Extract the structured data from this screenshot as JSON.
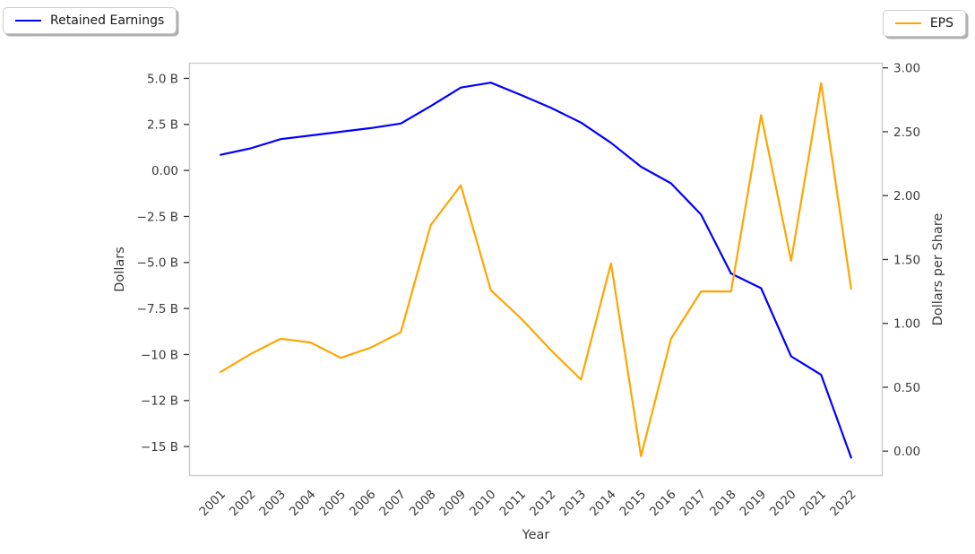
{
  "chart_data": {
    "type": "line",
    "title": "",
    "xlabel": "Year",
    "ylabel_left": "Dollars",
    "ylabel_right": "Dollars per Share",
    "grid": false,
    "legend_position": "two separate fancy boxes at top-left and top-right figure corners",
    "x": [
      2001,
      2002,
      2003,
      2004,
      2005,
      2006,
      2007,
      2008,
      2009,
      2010,
      2011,
      2012,
      2013,
      2014,
      2015,
      2016,
      2017,
      2018,
      2019,
      2020,
      2021,
      2022
    ],
    "series": [
      {
        "name": "Retained Earnings",
        "axis": "left",
        "color": "#0000ff",
        "unit": "billions of dollars",
        "values": [
          0.85,
          1.2,
          1.7,
          1.9,
          2.1,
          2.3,
          2.55,
          3.5,
          4.5,
          4.77,
          4.1,
          3.4,
          2.6,
          1.5,
          0.2,
          -0.7,
          -2.4,
          -5.6,
          -6.4,
          -10.1,
          -11.1,
          -15.6
        ]
      },
      {
        "name": "EPS",
        "axis": "right",
        "color": "#ffa500",
        "unit": "dollars per share",
        "values": [
          0.62,
          0.76,
          0.88,
          0.85,
          0.73,
          0.81,
          0.93,
          1.77,
          2.08,
          1.26,
          1.04,
          0.79,
          0.56,
          1.47,
          -0.04,
          0.88,
          1.25,
          1.25,
          2.63,
          1.49,
          2.88,
          1.27
        ]
      }
    ],
    "x_axis": {
      "range": [
        1999.95,
        2023.05
      ],
      "tick_labels": [
        "2001",
        "2002",
        "2003",
        "2004",
        "2005",
        "2006",
        "2007",
        "2008",
        "2009",
        "2010",
        "2011",
        "2012",
        "2013",
        "2014",
        "2015",
        "2016",
        "2017",
        "2018",
        "2019",
        "2020",
        "2021",
        "2022"
      ],
      "label_rotation_deg": 45
    },
    "left_axis": {
      "range": [
        -16.6,
        5.85
      ],
      "ticks": [
        {
          "value": 5.0,
          "label": "5.0 B"
        },
        {
          "value": 2.5,
          "label": "2.5 B"
        },
        {
          "value": 0,
          "label": "0.00"
        },
        {
          "value": -2.5,
          "label": "−2.5 B"
        },
        {
          "value": -5.0,
          "label": "−5.0 B"
        },
        {
          "value": -7.5,
          "label": "−7.5 B"
        },
        {
          "value": -10,
          "label": "−10 B"
        },
        {
          "value": -12.5,
          "label": "−12 B"
        },
        {
          "value": -15,
          "label": "−15 B"
        }
      ]
    },
    "right_axis": {
      "range": [
        -0.195,
        3.04
      ],
      "ticks": [
        {
          "value": 3.0,
          "label": "3.00"
        },
        {
          "value": 2.5,
          "label": "2.50"
        },
        {
          "value": 2.0,
          "label": "2.00"
        },
        {
          "value": 1.5,
          "label": "1.50"
        },
        {
          "value": 1.0,
          "label": "1.00"
        },
        {
          "value": 0.5,
          "label": "0.50"
        },
        {
          "value": 0.0,
          "label": "0.00"
        }
      ]
    },
    "style": {
      "background": "#ffffff",
      "spine_color": "#cccccc",
      "tick_mark_color": "#333333",
      "tick_label_color": "#3a3a3a",
      "axis_label_color": "#3a3a3a"
    }
  }
}
